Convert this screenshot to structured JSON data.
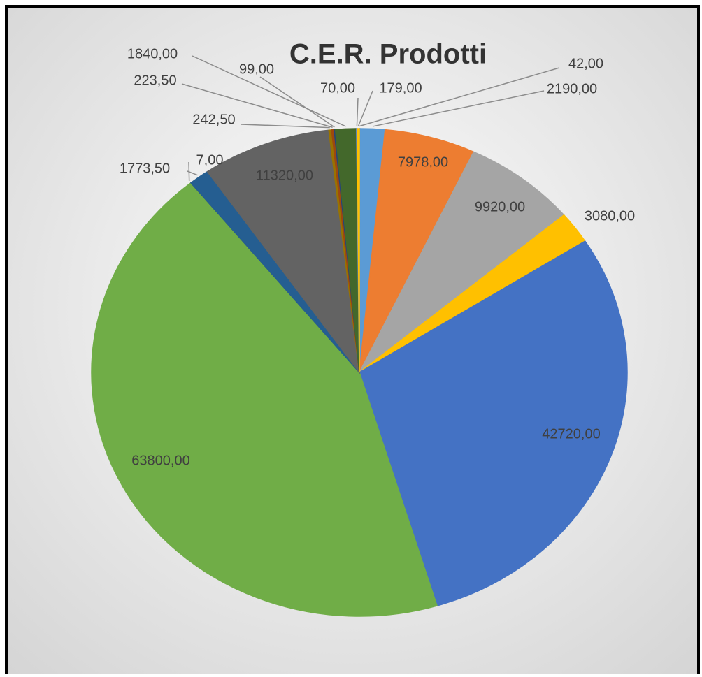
{
  "chart_data": {
    "type": "pie",
    "title": "C.E.R. Prodotti",
    "values": [
      42,
      2190,
      7978,
      9920,
      3080,
      42720,
      63800,
      7,
      1773.5,
      11320,
      242.5,
      223.5,
      99,
      1840,
      70,
      179
    ],
    "value_labels": [
      "42,00",
      "2190,00",
      "7978,00",
      "9920,00",
      "3080,00",
      "42720,00",
      "63800,00",
      "7,00",
      "1773,50",
      "11320,00",
      "242,50",
      "223,50",
      "99,00",
      "1840,00",
      "70,00",
      "179,00"
    ],
    "colors": [
      "#ed7d31",
      "#5b9bd5",
      "#ed7d31",
      "#a5a5a5",
      "#ffc000",
      "#4472c4",
      "#70ad47",
      "#264478",
      "#255e91",
      "#636363",
      "#997300",
      "#9e480e",
      "#264478",
      "#43682b",
      "#698ed0",
      "#ffc000"
    ]
  }
}
